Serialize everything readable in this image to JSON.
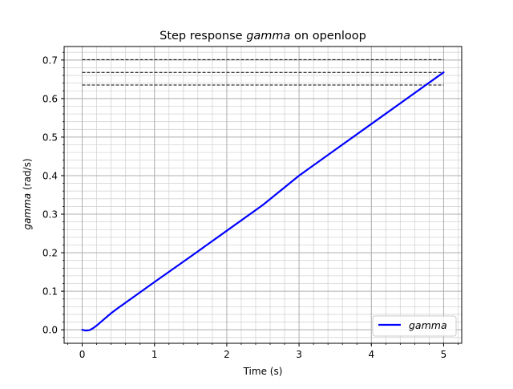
{
  "chart_data": {
    "type": "line",
    "title": {
      "prefix": "Step response ",
      "italic": "gamma",
      "suffix": " on openloop"
    },
    "xlabel": "Time (s)",
    "ylabel": {
      "italic": "gamma",
      "suffix": " (rad/s)"
    },
    "xlim": [
      -0.25,
      5.25
    ],
    "ylim": [
      -0.035,
      0.735
    ],
    "xticks": [
      0,
      1,
      2,
      3,
      4,
      5
    ],
    "xtick_labels": [
      "0",
      "1",
      "2",
      "3",
      "4",
      "5"
    ],
    "yticks": [
      0.0,
      0.1,
      0.2,
      0.3,
      0.4,
      0.5,
      0.6,
      0.7
    ],
    "ytick_labels": [
      "0.0",
      "0.1",
      "0.2",
      "0.3",
      "0.4",
      "0.5",
      "0.6",
      "0.7"
    ],
    "grid": {
      "major": true,
      "minor": true,
      "x_minor_step": 0.2,
      "y_minor_step": 0.02
    },
    "legend_position": "lower-right",
    "series": [
      {
        "name": "gamma",
        "color": "#0000ff",
        "style": "solid",
        "x": [
          0,
          0.05,
          0.1,
          0.15,
          0.2,
          0.25,
          0.3,
          0.4,
          0.5,
          1,
          1.5,
          2,
          2.5,
          3,
          3.5,
          4,
          4.5,
          5
        ],
        "y": [
          0.0,
          -0.002,
          -0.001,
          0.004,
          0.011,
          0.019,
          0.027,
          0.043,
          0.057,
          0.124,
          0.19,
          0.257,
          0.324,
          0.4,
          0.467,
          0.534,
          0.601,
          0.668
        ]
      }
    ],
    "reference_lines": [
      {
        "y": 0.701,
        "x": [
          0,
          5
        ],
        "color": "#000000",
        "style": "dashed"
      },
      {
        "y": 0.668,
        "x": [
          0,
          5
        ],
        "color": "#000000",
        "style": "dashed"
      },
      {
        "y": 0.635,
        "x": [
          0,
          5
        ],
        "color": "#000000",
        "style": "dashed"
      }
    ]
  }
}
